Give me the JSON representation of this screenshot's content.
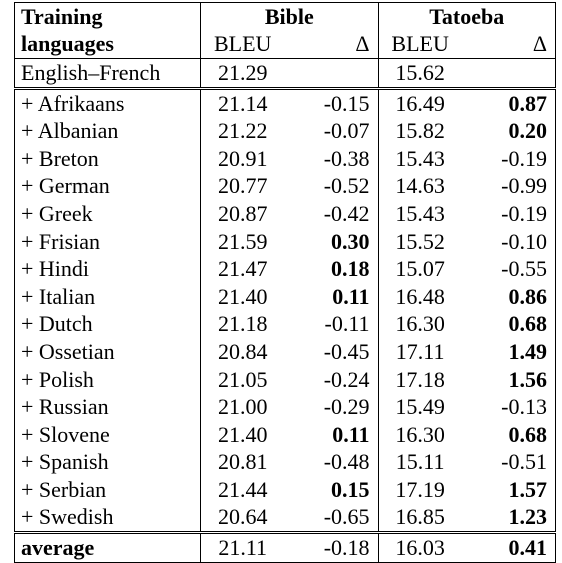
{
  "headers": {
    "training_line1": "Training",
    "training_line2": "languages",
    "group1": "Bible",
    "group2": "Tatoeba",
    "bleu": "BLEU",
    "delta": "Δ"
  },
  "baseline": {
    "label": "English–French",
    "bible_bleu": "21.29",
    "tatoeba_bleu": "15.62"
  },
  "rows": [
    {
      "label": "+ Afrikaans",
      "bible_bleu": "21.14",
      "bible_delta": "-0.15",
      "bible_bold": false,
      "tatoeba_bleu": "16.49",
      "tatoeba_delta": "0.87",
      "tatoeba_bold": true
    },
    {
      "label": "+ Albanian",
      "bible_bleu": "21.22",
      "bible_delta": "-0.07",
      "bible_bold": false,
      "tatoeba_bleu": "15.82",
      "tatoeba_delta": "0.20",
      "tatoeba_bold": true
    },
    {
      "label": "+ Breton",
      "bible_bleu": "20.91",
      "bible_delta": "-0.38",
      "bible_bold": false,
      "tatoeba_bleu": "15.43",
      "tatoeba_delta": "-0.19",
      "tatoeba_bold": false
    },
    {
      "label": "+ German",
      "bible_bleu": "20.77",
      "bible_delta": "-0.52",
      "bible_bold": false,
      "tatoeba_bleu": "14.63",
      "tatoeba_delta": "-0.99",
      "tatoeba_bold": false
    },
    {
      "label": "+ Greek",
      "bible_bleu": "20.87",
      "bible_delta": "-0.42",
      "bible_bold": false,
      "tatoeba_bleu": "15.43",
      "tatoeba_delta": "-0.19",
      "tatoeba_bold": false
    },
    {
      "label": "+ Frisian",
      "bible_bleu": "21.59",
      "bible_delta": "0.30",
      "bible_bold": true,
      "tatoeba_bleu": "15.52",
      "tatoeba_delta": "-0.10",
      "tatoeba_bold": false
    },
    {
      "label": "+ Hindi",
      "bible_bleu": "21.47",
      "bible_delta": "0.18",
      "bible_bold": true,
      "tatoeba_bleu": "15.07",
      "tatoeba_delta": "-0.55",
      "tatoeba_bold": false
    },
    {
      "label": "+ Italian",
      "bible_bleu": "21.40",
      "bible_delta": "0.11",
      "bible_bold": true,
      "tatoeba_bleu": "16.48",
      "tatoeba_delta": "0.86",
      "tatoeba_bold": true
    },
    {
      "label": "+ Dutch",
      "bible_bleu": "21.18",
      "bible_delta": "-0.11",
      "bible_bold": false,
      "tatoeba_bleu": "16.30",
      "tatoeba_delta": "0.68",
      "tatoeba_bold": true
    },
    {
      "label": "+ Ossetian",
      "bible_bleu": "20.84",
      "bible_delta": "-0.45",
      "bible_bold": false,
      "tatoeba_bleu": "17.11",
      "tatoeba_delta": "1.49",
      "tatoeba_bold": true
    },
    {
      "label": "+ Polish",
      "bible_bleu": "21.05",
      "bible_delta": "-0.24",
      "bible_bold": false,
      "tatoeba_bleu": "17.18",
      "tatoeba_delta": "1.56",
      "tatoeba_bold": true
    },
    {
      "label": "+ Russian",
      "bible_bleu": "21.00",
      "bible_delta": "-0.29",
      "bible_bold": false,
      "tatoeba_bleu": "15.49",
      "tatoeba_delta": "-0.13",
      "tatoeba_bold": false
    },
    {
      "label": "+ Slovene",
      "bible_bleu": "21.40",
      "bible_delta": "0.11",
      "bible_bold": true,
      "tatoeba_bleu": "16.30",
      "tatoeba_delta": "0.68",
      "tatoeba_bold": true
    },
    {
      "label": "+ Spanish",
      "bible_bleu": "20.81",
      "bible_delta": "-0.48",
      "bible_bold": false,
      "tatoeba_bleu": "15.11",
      "tatoeba_delta": "-0.51",
      "tatoeba_bold": false
    },
    {
      "label": "+ Serbian",
      "bible_bleu": "21.44",
      "bible_delta": "0.15",
      "bible_bold": true,
      "tatoeba_bleu": "17.19",
      "tatoeba_delta": "1.57",
      "tatoeba_bold": true
    },
    {
      "label": "+ Swedish",
      "bible_bleu": "20.64",
      "bible_delta": "-0.65",
      "bible_bold": false,
      "tatoeba_bleu": "16.85",
      "tatoeba_delta": "1.23",
      "tatoeba_bold": true
    }
  ],
  "average": {
    "label": "average",
    "bible_bleu": "21.11",
    "bible_delta": "-0.18",
    "bible_bold": false,
    "tatoeba_bleu": "16.03",
    "tatoeba_delta": "0.41",
    "tatoeba_bold": true
  }
}
